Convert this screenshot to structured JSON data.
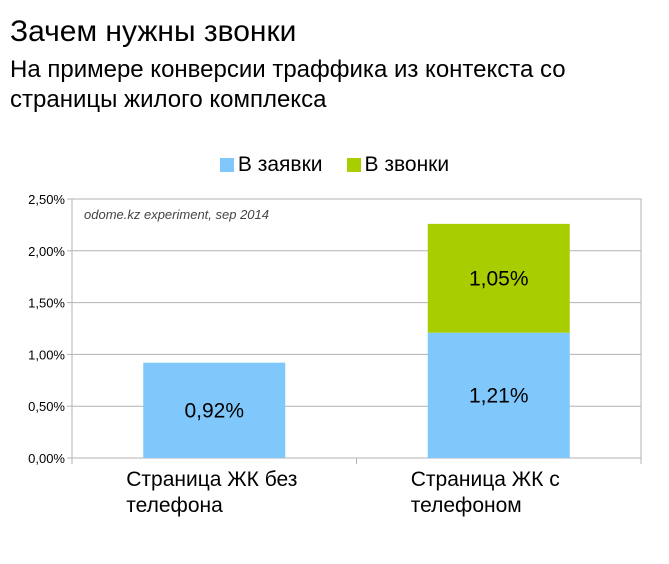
{
  "slide": {
    "title": "Зачем нужны звонки",
    "subtitle": "На примере конверсии траффика из контекста со страницы жилого комплекса"
  },
  "chart_data": {
    "type": "bar",
    "stacked": true,
    "categories": [
      "Страница ЖК без телефона",
      "Страница ЖК с телефоном"
    ],
    "category_lines": [
      [
        "Страница ЖК без",
        "телефона"
      ],
      [
        "Страница ЖК с",
        "телефоном"
      ]
    ],
    "series": [
      {
        "name": "В заявки",
        "values": [
          0.92,
          1.21
        ],
        "labels": [
          "0,92%",
          "1,21%"
        ],
        "color": "#80c8fb"
      },
      {
        "name": "В звонки",
        "values": [
          null,
          1.05
        ],
        "labels": [
          "",
          "1,05%"
        ],
        "color": "#a8cd00"
      }
    ],
    "ylim": [
      0,
      2.5
    ],
    "y_ticks": [
      0,
      0.5,
      1.0,
      1.5,
      2.0,
      2.5
    ],
    "y_tick_labels": [
      "0,00%",
      "0,50%",
      "1,00%",
      "1,50%",
      "2,00%",
      "2,50%"
    ],
    "annotation": "odome.kz experiment, sep 2014",
    "legend_position": "top-center",
    "grid": true,
    "xlabel": "",
    "ylabel": ""
  }
}
